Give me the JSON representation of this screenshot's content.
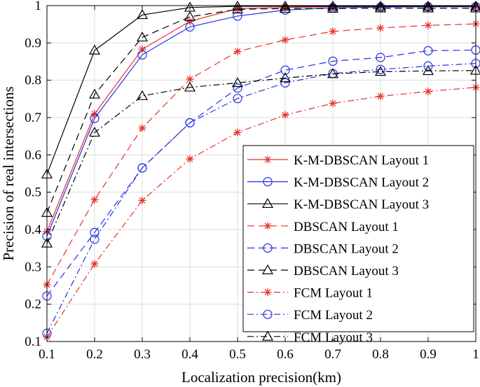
{
  "chart_data": {
    "type": "line",
    "title": "",
    "xlabel": "Localization precision(km)",
    "ylabel": "Precision of real intersections",
    "xlim": [
      0.1,
      1
    ],
    "ylim": [
      0.1,
      1
    ],
    "x": [
      0.1,
      0.2,
      0.3,
      0.4,
      0.5,
      0.6,
      0.7,
      0.8,
      0.9,
      1.0
    ],
    "x_ticks": [
      "0.1",
      "0.2",
      "0.3",
      "0.4",
      "0.5",
      "0.6",
      "0.7",
      "0.8",
      "0.9",
      "1"
    ],
    "y_ticks": [
      "0.1",
      "0.2",
      "0.3",
      "0.4",
      "0.5",
      "0.6",
      "0.7",
      "0.8",
      "0.9",
      "1"
    ],
    "grid": true,
    "legend_position": "lower-right",
    "series": [
      {
        "name": "K-M-DBSCAN Layout 1",
        "color": "#e8312a",
        "dash": "solid",
        "marker": "asterisk",
        "values": [
          0.395,
          0.71,
          0.883,
          0.958,
          0.992,
          0.995,
          0.997,
          0.998,
          0.998,
          0.998
        ]
      },
      {
        "name": "K-M-DBSCAN Layout 2",
        "color": "#2630e6",
        "dash": "solid",
        "marker": "circle",
        "values": [
          0.382,
          0.698,
          0.868,
          0.943,
          0.972,
          0.988,
          0.994,
          0.996,
          0.997,
          0.997
        ]
      },
      {
        "name": "K-M-DBSCAN Layout 3",
        "color": "#000000",
        "dash": "solid",
        "marker": "triangle",
        "values": [
          0.548,
          0.88,
          0.975,
          0.995,
          0.998,
          0.998,
          0.998,
          0.998,
          0.998,
          0.998
        ]
      },
      {
        "name": "DBSCAN Layout 1",
        "color": "#e8312a",
        "dash": "dashed",
        "marker": "asterisk",
        "values": [
          0.252,
          0.48,
          0.672,
          0.803,
          0.877,
          0.908,
          0.931,
          0.94,
          0.947,
          0.951
        ]
      },
      {
        "name": "DBSCAN Layout 2",
        "color": "#2630e6",
        "dash": "dashed",
        "marker": "circle",
        "values": [
          0.222,
          0.392,
          0.565,
          0.686,
          0.779,
          0.827,
          0.851,
          0.861,
          0.879,
          0.881
        ]
      },
      {
        "name": "DBSCAN Layout 3",
        "color": "#000000",
        "dash": "dashed",
        "marker": "triangle",
        "values": [
          0.445,
          0.762,
          0.915,
          0.97,
          0.99,
          0.992,
          0.992,
          0.993,
          0.993,
          0.993
        ]
      },
      {
        "name": "FCM Layout 1",
        "color": "#e8312a",
        "dash": "dashdot",
        "marker": "asterisk",
        "values": [
          0.112,
          0.308,
          0.478,
          0.589,
          0.66,
          0.707,
          0.738,
          0.757,
          0.77,
          0.781
        ]
      },
      {
        "name": "FCM Layout 2",
        "color": "#2630e6",
        "dash": "dashdot",
        "marker": "circle",
        "values": [
          0.122,
          0.374,
          0.565,
          0.686,
          0.751,
          0.793,
          0.818,
          0.829,
          0.838,
          0.845
        ]
      },
      {
        "name": "FCM Layout 3",
        "color": "#000000",
        "dash": "dashdot",
        "marker": "triangle",
        "values": [
          0.363,
          0.66,
          0.758,
          0.781,
          0.793,
          0.806,
          0.817,
          0.823,
          0.825,
          0.826
        ]
      }
    ]
  }
}
